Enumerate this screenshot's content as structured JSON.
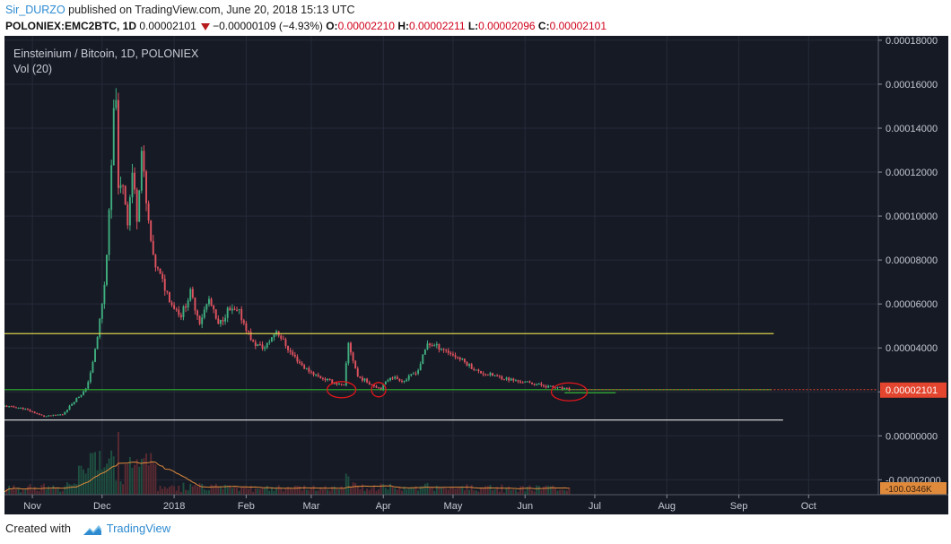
{
  "header": {
    "user": "Sir_DURZO",
    "published_text": "published on TradingView.com, June 20, 2018 15:13 UTC",
    "symbol": "POLONIEX:EMC2BTC, 1D",
    "last": "0.00002101",
    "change": "−0.00000109 (−4.93%)",
    "o_label": "O:",
    "o_value": "0.00002210",
    "h_label": "H:",
    "h_value": "0.00002211",
    "l_label": "L:",
    "l_value": "0.00002096",
    "c_label": "C:",
    "c_value": "0.00002101"
  },
  "legend": {
    "title": "Einsteinium / Bitcoin, 1D, POLONIEX",
    "volume": "Vol (20)"
  },
  "footer": {
    "created_with": "Created with",
    "brand": "TradingView"
  },
  "colors": {
    "background": "#161a25",
    "grid": "#262b3a",
    "up": "#3fae7f",
    "down": "#e0525f",
    "resistance": "#d8d24a",
    "support": "#2fb32f",
    "baseline": "#d0d0d0",
    "circle": "#e3161b",
    "price_tag": "#e3452e",
    "vol_ma": "#e08a3b"
  },
  "chart_data": {
    "type": "candlestick",
    "title": "Einsteinium / Bitcoin, 1D, POLONIEX",
    "y_ticks": [
      "0.00018000",
      "0.00016000",
      "0.00014000",
      "0.00012000",
      "0.00010000",
      "0.00008000",
      "0.00006000",
      "0.00004000",
      "0.00002000",
      "0.00000000",
      "-0.00002000"
    ],
    "y_tick_values": [
      0.00018,
      0.00016,
      0.00014,
      0.00012,
      0.0001,
      8e-05,
      6e-05,
      4e-05,
      2e-05,
      0.0,
      -2e-05
    ],
    "ylim": [
      -2.68e-05,
      0.000182
    ],
    "x_ticks": [
      "Nov",
      "Dec",
      "2018",
      "Feb",
      "Mar",
      "Apr",
      "May",
      "Jun",
      "Jul",
      "Aug",
      "Sep",
      "Oct"
    ],
    "x_tick_dates": [
      "2017-11-01",
      "2017-12-01",
      "2018-01-01",
      "2018-02-01",
      "2018-03-01",
      "2018-04-01",
      "2018-05-01",
      "2018-06-01",
      "2018-07-01",
      "2018-08-01",
      "2018-09-01",
      "2018-10-01"
    ],
    "x_range": [
      "2017-10-20",
      "2018-10-31"
    ],
    "last_price_label": "0.00002101",
    "volume_axis_label": "-100.0346K",
    "horizontal_lines": [
      {
        "name": "resistance",
        "value": 4.65e-05,
        "from": "2017-10-20",
        "to": "2018-09-16"
      },
      {
        "name": "support",
        "value": 2.1e-05,
        "from": "2017-10-20",
        "to": "2018-09-15"
      },
      {
        "name": "baseline",
        "value": 7.2e-06,
        "from": "2017-10-20",
        "to": "2018-09-20"
      }
    ],
    "anchors": [
      {
        "date": "2017-10-20",
        "close": 1.35e-05
      },
      {
        "date": "2017-10-28",
        "close": 1.25e-05
      },
      {
        "date": "2017-11-06",
        "close": 8.8e-06
      },
      {
        "date": "2017-11-14",
        "close": 9.8e-06
      },
      {
        "date": "2017-11-20",
        "close": 1.7e-05
      },
      {
        "date": "2017-11-24",
        "close": 2.1e-05
      },
      {
        "date": "2017-11-27",
        "close": 3.3e-05
      },
      {
        "date": "2017-11-29",
        "close": 4.5e-05
      },
      {
        "date": "2017-12-02",
        "close": 6.8e-05
      },
      {
        "date": "2017-12-04",
        "close": 0.0001
      },
      {
        "date": "2017-12-06",
        "close": 0.000145
      },
      {
        "date": "2017-12-07",
        "close": 0.000157
      },
      {
        "date": "2017-12-08",
        "close": 0.00011
      },
      {
        "date": "2017-12-10",
        "close": 0.000115
      },
      {
        "date": "2017-12-12",
        "close": 9.8e-05
      },
      {
        "date": "2017-12-14",
        "close": 0.00012
      },
      {
        "date": "2017-12-16",
        "close": 0.0001
      },
      {
        "date": "2017-12-18",
        "close": 0.00013
      },
      {
        "date": "2017-12-20",
        "close": 0.000105
      },
      {
        "date": "2017-12-23",
        "close": 8e-05
      },
      {
        "date": "2017-12-27",
        "close": 7e-05
      },
      {
        "date": "2017-12-31",
        "close": 6e-05
      },
      {
        "date": "2018-01-04",
        "close": 5.5e-05
      },
      {
        "date": "2018-01-08",
        "close": 6.5e-05
      },
      {
        "date": "2018-01-12",
        "close": 5.2e-05
      },
      {
        "date": "2018-01-16",
        "close": 6.2e-05
      },
      {
        "date": "2018-01-20",
        "close": 5e-05
      },
      {
        "date": "2018-01-24",
        "close": 5.7e-05
      },
      {
        "date": "2018-01-29",
        "close": 5.6e-05
      },
      {
        "date": "2018-02-04",
        "close": 4.2e-05
      },
      {
        "date": "2018-02-09",
        "close": 4e-05
      },
      {
        "date": "2018-02-14",
        "close": 4.8e-05
      },
      {
        "date": "2018-02-20",
        "close": 3.8e-05
      },
      {
        "date": "2018-02-26",
        "close": 3.1e-05
      },
      {
        "date": "2018-03-04",
        "close": 2.7e-05
      },
      {
        "date": "2018-03-10",
        "close": 2.45e-05
      },
      {
        "date": "2018-03-15",
        "close": 2.25e-05
      },
      {
        "date": "2018-03-17",
        "close": 4.2e-05
      },
      {
        "date": "2018-03-21",
        "close": 2.7e-05
      },
      {
        "date": "2018-03-27",
        "close": 2.35e-05
      },
      {
        "date": "2018-03-31",
        "close": 2.15e-05
      },
      {
        "date": "2018-04-04",
        "close": 2.7e-05
      },
      {
        "date": "2018-04-10",
        "close": 2.5e-05
      },
      {
        "date": "2018-04-16",
        "close": 3e-05
      },
      {
        "date": "2018-04-20",
        "close": 4.2e-05
      },
      {
        "date": "2018-04-26",
        "close": 4e-05
      },
      {
        "date": "2018-05-04",
        "close": 3.5e-05
      },
      {
        "date": "2018-05-12",
        "close": 2.9e-05
      },
      {
        "date": "2018-05-20",
        "close": 2.7e-05
      },
      {
        "date": "2018-05-28",
        "close": 2.5e-05
      },
      {
        "date": "2018-06-06",
        "close": 2.35e-05
      },
      {
        "date": "2018-06-13",
        "close": 2.2e-05
      },
      {
        "date": "2018-06-20",
        "close": 2.1e-05
      }
    ]
  }
}
